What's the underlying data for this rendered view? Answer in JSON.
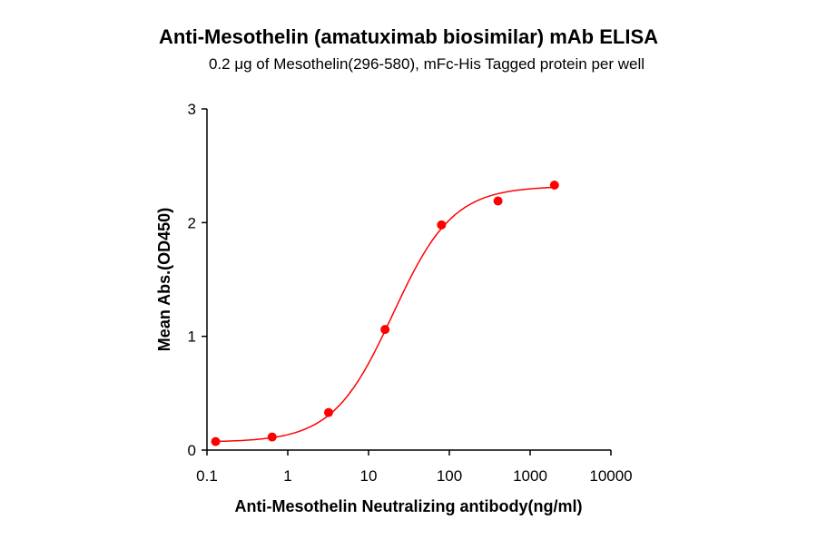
{
  "chart_data": {
    "type": "scatter",
    "title": "Anti-Mesothelin (amatuximab biosimilar) mAb ELISA",
    "subtitle": "0.2 μg of Mesothelin(296-580), mFc-His Tagged protein per well",
    "xlabel": "Anti-Mesothelin Neutralizing antibody(ng/ml)",
    "ylabel": "Mean Abs.(OD450)",
    "xscale": "log",
    "xlim": [
      0.1,
      10000
    ],
    "ylim": [
      0,
      3
    ],
    "xticks": [
      "0.1",
      "1",
      "10",
      "100",
      "1000",
      "10000"
    ],
    "yticks": [
      "0",
      "1",
      "2",
      "3"
    ],
    "grid": false,
    "color": "#ff0000",
    "fit": "sigmoidal curve",
    "series": [
      {
        "x": [
          0.128,
          0.64,
          3.2,
          16,
          80,
          400,
          2000
        ],
        "y": [
          0.075,
          0.115,
          0.33,
          1.06,
          1.98,
          2.19,
          2.33
        ]
      }
    ]
  }
}
